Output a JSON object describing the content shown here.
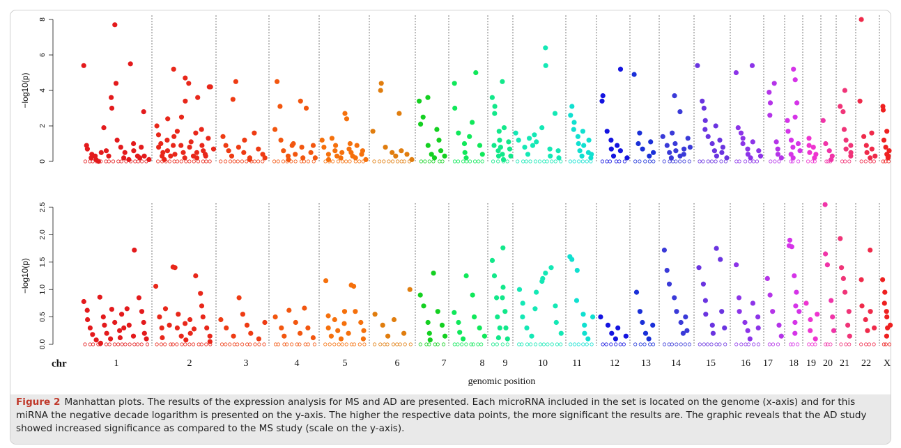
{
  "figure": {
    "label": "Figure 2",
    "caption": "Manhattan plots. The results of the expression analysis for MS and AD are presented. Each microRNA included in the set is located on the genome (x-axis) and for this miRNA the negative decade logarithm is presented on the y-axis. The higher the respective data points, the more significant the results are. The graphic reveals that the AD study showed increased significance as compared to the MS study (scale on the y-axis)."
  },
  "chart_data": [
    {
      "type": "scatter",
      "panel": "top",
      "ylabel": "−log10(p)",
      "ylim": [
        0,
        8
      ],
      "yticks": [
        "0",
        "2",
        "4",
        "6",
        "8"
      ],
      "xlabel": "",
      "grid": false,
      "chromosomes": [
        "1",
        "2",
        "3",
        "4",
        "5",
        "6",
        "7",
        "8",
        "9",
        "10",
        "11",
        "12",
        "13",
        "14",
        "15",
        "16",
        "17",
        "18",
        "19",
        "20",
        "21",
        "22",
        "X"
      ],
      "series": [
        {
          "chr": "1",
          "values": [
            5.4,
            0.9,
            0.7,
            0.4,
            0.2,
            0.1,
            0.3,
            0.0,
            0.5,
            1.9,
            0.6,
            0.3,
            3.6,
            3.0,
            4.4,
            7.7,
            1.2,
            0.8,
            0.5,
            0.2,
            0.1,
            5.5,
            1.0,
            0.6,
            0.3,
            0.2,
            0.8,
            2.8,
            0.3,
            0.1
          ]
        },
        {
          "chr": "2",
          "values": [
            2.0,
            1.5,
            1.0,
            0.8,
            0.5,
            0.3,
            0.1,
            2.4,
            1.2,
            0.6,
            0.3,
            5.2,
            1.4,
            0.9,
            0.4,
            1.7,
            2.5,
            0.9,
            0.5,
            0.2,
            3.4,
            4.7,
            4.4,
            0.8,
            0.3,
            1.1,
            1.6,
            0.5,
            3.6,
            0.2,
            1.8,
            0.9,
            0.6,
            0.4,
            0.3,
            1.3,
            4.2,
            4.2,
            0.7
          ]
        },
        {
          "chr": "3",
          "values": [
            1.4,
            0.9,
            0.6,
            0.3,
            3.5,
            4.5,
            0.8,
            1.2,
            0.5,
            0.2,
            0.1,
            1.6,
            0.7,
            0.4,
            0.2
          ]
        },
        {
          "chr": "4",
          "values": [
            1.8,
            4.5,
            3.1,
            1.2,
            0.6,
            0.3,
            0.1,
            0.9,
            1.0,
            0.4,
            3.4,
            0.8,
            0.2,
            3.0,
            0.5,
            0.9,
            0.2
          ]
        },
        {
          "chr": "5",
          "values": [
            1.2,
            0.8,
            0.4,
            0.1,
            1.3,
            0.6,
            0.9,
            0.3,
            0.5,
            0.2,
            2.7,
            2.4,
            1.0,
            0.7,
            0.5,
            0.3,
            0.2,
            0.9,
            0.6,
            0.4,
            0.1
          ]
        },
        {
          "chr": "6",
          "values": [
            1.7,
            4.0,
            4.4,
            0.8,
            0.5,
            0.3,
            2.7,
            0.6,
            0.4,
            0.1
          ]
        },
        {
          "chr": "7",
          "values": [
            3.4,
            2.1,
            2.5,
            3.6,
            0.9,
            0.4,
            0.2,
            1.8,
            1.2,
            0.6,
            0.3
          ]
        },
        {
          "chr": "8",
          "values": [
            4.4,
            3.0,
            1.6,
            1.0,
            0.5,
            0.2,
            1.4,
            2.2,
            5.0,
            0.9,
            0.4
          ]
        },
        {
          "chr": "9",
          "values": [
            3.6,
            3.1,
            2.7,
            0.9,
            0.6,
            0.3,
            1.2,
            1.7,
            0.8,
            0.4,
            0.1,
            4.5,
            1.9,
            1.1,
            0.7,
            0.3
          ]
        },
        {
          "chr": "10",
          "values": [
            1.6,
            1.2,
            0.8,
            0.4,
            1.3,
            0.9,
            1.5,
            1.1,
            1.9,
            6.4,
            5.4,
            0.7,
            0.3,
            2.7,
            0.6,
            0.2
          ]
        },
        {
          "chr": "11",
          "values": [
            3.1,
            2.6,
            2.2,
            1.8,
            1.4,
            1.0,
            0.6,
            0.3,
            1.7,
            0.9,
            0.5,
            1.2,
            0.4,
            0.2
          ]
        },
        {
          "chr": "12",
          "values": [
            3.7,
            3.4,
            1.7,
            1.2,
            0.7,
            0.3,
            0.9,
            5.2,
            0.6,
            0.2
          ]
        },
        {
          "chr": "13",
          "values": [
            4.9,
            1.0,
            1.6,
            0.7,
            0.3,
            1.1,
            0.5
          ]
        },
        {
          "chr": "14",
          "values": [
            1.4,
            0.9,
            0.5,
            0.2,
            1.6,
            3.7,
            1.0,
            0.6,
            0.3,
            2.8,
            0.7,
            0.4,
            1.3,
            0.8
          ]
        },
        {
          "chr": "15",
          "values": [
            5.4,
            3.4,
            3.0,
            2.3,
            1.8,
            1.4,
            1.0,
            0.6,
            0.3,
            2.0,
            1.2,
            0.8,
            0.5,
            0.2
          ]
        },
        {
          "chr": "16",
          "values": [
            5.0,
            1.9,
            1.6,
            1.3,
            1.0,
            0.7,
            0.4,
            0.2,
            5.4,
            1.1,
            0.6,
            0.3
          ]
        },
        {
          "chr": "17",
          "values": [
            3.9,
            3.3,
            2.6,
            4.4,
            1.1,
            0.7,
            0.4,
            0.2
          ]
        },
        {
          "chr": "18",
          "values": [
            2.3,
            1.7,
            1.2,
            0.8,
            0.4,
            0.2,
            5.2,
            4.6,
            3.3,
            2.5,
            1.0,
            0.6
          ]
        },
        {
          "chr": "19",
          "values": [
            1.3,
            0.9,
            0.5,
            0.2,
            0.8,
            0.4
          ]
        },
        {
          "chr": "20",
          "values": [
            2.3,
            1.0,
            0.6,
            0.3,
            0.1
          ]
        },
        {
          "chr": "21",
          "values": [
            3.1,
            2.8,
            4.0,
            1.8,
            1.2,
            0.7,
            0.3,
            0.9,
            0.5
          ]
        },
        {
          "chr": "22",
          "values": [
            8.0,
            3.4,
            1.4,
            0.9,
            0.5,
            0.2,
            1.6,
            0.7,
            0.3
          ]
        },
        {
          "chr": "X",
          "values": [
            3.1,
            2.9,
            1.7,
            1.2,
            0.8,
            0.4,
            0.2,
            0.6,
            0.3
          ]
        }
      ]
    },
    {
      "type": "scatter",
      "panel": "bottom",
      "ylabel": "−log10(p)",
      "ylim": [
        0,
        2.5
      ],
      "yticks": [
        "0.0",
        "0.5",
        "1.0",
        "1.5",
        "2.0",
        "2.5"
      ],
      "xlabel": "genomic position",
      "xhead": "chr",
      "grid": false,
      "chromosomes": [
        "1",
        "2",
        "3",
        "4",
        "5",
        "6",
        "7",
        "8",
        "9",
        "10",
        "11",
        "12",
        "13",
        "14",
        "15",
        "16",
        "17",
        "18",
        "19",
        "20",
        "21",
        "22",
        "X"
      ],
      "series": [
        {
          "chr": "1",
          "values": [
            0.78,
            0.62,
            0.45,
            0.3,
            0.18,
            0.08,
            0.02,
            0.86,
            0.5,
            0.35,
            0.2,
            0.1,
            0.64,
            0.4,
            0.25,
            0.12,
            0.55,
            0.3,
            0.65,
            0.35,
            0.15,
            1.72,
            0.85,
            0.6,
            0.4,
            0.2,
            0.1
          ]
        },
        {
          "chr": "2",
          "values": [
            1.06,
            0.5,
            0.3,
            0.12,
            0.65,
            0.35,
            1.41,
            1.4,
            0.55,
            0.3,
            0.15,
            0.08,
            0.38,
            0.2,
            0.45,
            0.28,
            1.25,
            0.93,
            0.7,
            0.5,
            0.3,
            0.15,
            0.05
          ]
        },
        {
          "chr": "3",
          "values": [
            0.45,
            0.3,
            0.15,
            0.85,
            0.55,
            0.35,
            0.2,
            0.1,
            0.4
          ]
        },
        {
          "chr": "4",
          "values": [
            0.5,
            0.3,
            0.15,
            0.62,
            0.4,
            0.2,
            0.66,
            0.3,
            0.12
          ]
        },
        {
          "chr": "5",
          "values": [
            1.16,
            0.52,
            0.3,
            0.15,
            0.45,
            0.25,
            0.1,
            0.6,
            0.38,
            0.2,
            1.08,
            1.06,
            0.6,
            0.4,
            0.25,
            0.1
          ]
        },
        {
          "chr": "6",
          "values": [
            0.55,
            0.35,
            0.15,
            0.45,
            0.2,
            1.0
          ]
        },
        {
          "chr": "7",
          "values": [
            0.9,
            0.7,
            0.4,
            0.2,
            0.08,
            1.3,
            0.6,
            0.35,
            0.15
          ]
        },
        {
          "chr": "8",
          "values": [
            0.58,
            0.4,
            0.22,
            0.1,
            1.25,
            0.9,
            0.5,
            0.3,
            0.15
          ]
        },
        {
          "chr": "9",
          "values": [
            1.53,
            1.25,
            0.85,
            0.5,
            0.3,
            0.12,
            0.85,
            1.04,
            1.76,
            0.6,
            0.3,
            0.1
          ]
        },
        {
          "chr": "10",
          "values": [
            1.0,
            0.75,
            0.5,
            0.3,
            0.15,
            0.65,
            0.95,
            1.15,
            1.2,
            1.3,
            1.4,
            0.7,
            0.4,
            0.2
          ]
        },
        {
          "chr": "11",
          "values": [
            1.6,
            1.55,
            1.35,
            0.8,
            0.55,
            0.35,
            0.2,
            0.1,
            0.5
          ]
        },
        {
          "chr": "12",
          "values": [
            0.5,
            0.35,
            0.2,
            0.1,
            0.3,
            0.15
          ]
        },
        {
          "chr": "13",
          "values": [
            0.95,
            0.6,
            0.4,
            0.2,
            0.1,
            0.35
          ]
        },
        {
          "chr": "14",
          "values": [
            1.72,
            1.35,
            1.1,
            0.85,
            0.6,
            0.4,
            0.2,
            0.5,
            0.25
          ]
        },
        {
          "chr": "15",
          "values": [
            1.4,
            1.1,
            0.8,
            0.55,
            0.35,
            0.2,
            1.75,
            1.55,
            0.6,
            0.3
          ]
        },
        {
          "chr": "16",
          "values": [
            1.45,
            0.85,
            0.6,
            0.4,
            0.25,
            0.1,
            0.75,
            0.5,
            0.3
          ]
        },
        {
          "chr": "17",
          "values": [
            1.2,
            0.9,
            0.6,
            0.35,
            0.15
          ]
        },
        {
          "chr": "18",
          "values": [
            1.8,
            1.9,
            1.78,
            1.25,
            0.7,
            0.4,
            0.2,
            0.95,
            0.6
          ]
        },
        {
          "chr": "19",
          "values": [
            0.75,
            0.45,
            0.25,
            0.1,
            0.55
          ]
        },
        {
          "chr": "20",
          "values": [
            2.55,
            1.65,
            1.45,
            0.8,
            0.5,
            0.25
          ]
        },
        {
          "chr": "21",
          "values": [
            1.93,
            1.4,
            1.2,
            0.95,
            0.6,
            0.35,
            0.15
          ]
        },
        {
          "chr": "22",
          "values": [
            1.18,
            0.7,
            0.45,
            0.25,
            1.72,
            0.6,
            0.3
          ]
        },
        {
          "chr": "X",
          "values": [
            1.18,
            0.95,
            0.75,
            0.5,
            0.3,
            0.15,
            0.6,
            0.35
          ]
        }
      ]
    }
  ],
  "colors": [
    "#e31a1c",
    "#e8271a",
    "#ee3b13",
    "#f2560f",
    "#f5700c",
    "#e07d0e",
    "#14d021",
    "#10e85a",
    "#12e88a",
    "#14e8b5",
    "#10e0d0",
    "#1414e0",
    "#1a30d8",
    "#3a3ad8",
    "#6a34e0",
    "#8c34e8",
    "#b434e8",
    "#d534e8",
    "#ee34d0",
    "#f034a8",
    "#f03478",
    "#ef2a4a",
    "#ee2020"
  ]
}
